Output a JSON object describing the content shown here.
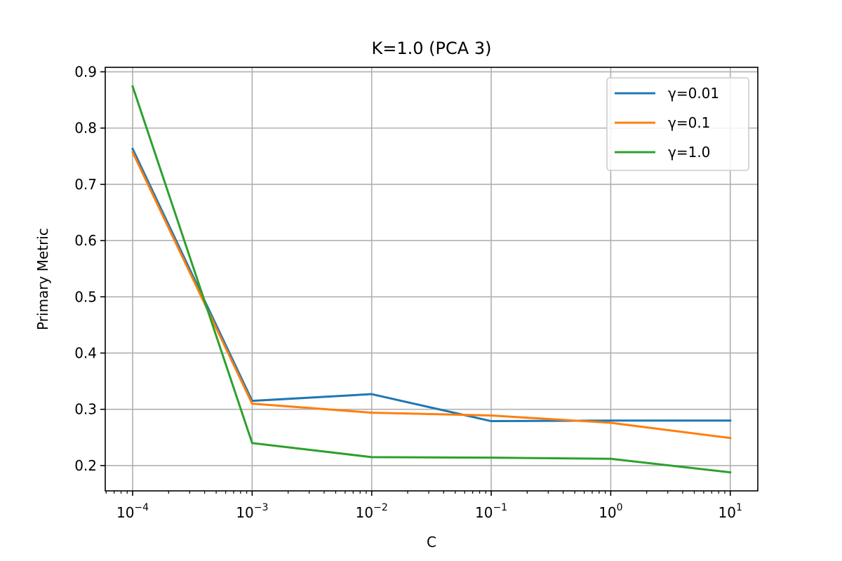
{
  "chart_data": {
    "type": "line",
    "title": "K=1.0 (PCA 3)",
    "xlabel": "C",
    "ylabel": "Primary Metric",
    "x_scale": "log",
    "x": [
      0.0001,
      0.001,
      0.01,
      0.1,
      1,
      10
    ],
    "x_tick_values": [
      0.0001,
      0.001,
      0.01,
      0.1,
      1,
      10
    ],
    "x_tick_bases": [
      "10",
      "10",
      "10",
      "10",
      "10",
      "10"
    ],
    "x_tick_exponents": [
      "−4",
      "−3",
      "−2",
      "−1",
      "0",
      "1"
    ],
    "y_ticks": [
      "0.2",
      "0.3",
      "0.4",
      "0.5",
      "0.6",
      "0.7",
      "0.8",
      "0.9"
    ],
    "y_tick_values": [
      0.2,
      0.3,
      0.4,
      0.5,
      0.6,
      0.7,
      0.8,
      0.9
    ],
    "xlim": [
      5.9e-05,
      17
    ],
    "ylim": [
      0.155,
      0.908
    ],
    "grid": true,
    "legend_position": "top-right",
    "series": [
      {
        "name": "γ=0.01",
        "color": "#1f77b4",
        "values": [
          0.763,
          0.315,
          0.327,
          0.279,
          0.28,
          0.28
        ]
      },
      {
        "name": "γ=0.1",
        "color": "#ff7f0e",
        "values": [
          0.757,
          0.31,
          0.294,
          0.289,
          0.276,
          0.249
        ]
      },
      {
        "name": "γ=1.0",
        "color": "#2ca02c",
        "values": [
          0.874,
          0.24,
          0.215,
          0.214,
          0.212,
          0.188
        ]
      }
    ]
  }
}
